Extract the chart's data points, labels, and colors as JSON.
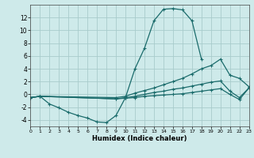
{
  "xlabel": "Humidex (Indice chaleur)",
  "background_color": "#ceeaea",
  "grid_color": "#a8cccc",
  "line_color": "#1a6b6b",
  "xlim": [
    0,
    23
  ],
  "ylim": [
    -5,
    14
  ],
  "xticks": [
    0,
    1,
    2,
    3,
    4,
    5,
    6,
    7,
    8,
    9,
    10,
    11,
    12,
    13,
    14,
    15,
    16,
    17,
    18,
    19,
    20,
    21,
    22,
    23
  ],
  "yticks": [
    -4,
    -2,
    0,
    2,
    4,
    6,
    8,
    10,
    12
  ],
  "series": [
    {
      "x": [
        0,
        1,
        2,
        3,
        4,
        5,
        6,
        7,
        8,
        9,
        10,
        11,
        12,
        13,
        14,
        15,
        16,
        17,
        18
      ],
      "y": [
        -0.5,
        -0.3,
        -1.5,
        -2.1,
        -2.8,
        -3.3,
        -3.7,
        -4.3,
        -4.4,
        -3.3,
        -0.5,
        4.0,
        7.2,
        11.5,
        13.3,
        13.4,
        13.2,
        11.5,
        5.5
      ]
    },
    {
      "x": [
        0,
        1,
        9,
        10,
        11,
        12,
        13,
        14,
        15,
        16,
        17,
        18,
        19,
        20,
        21,
        22,
        23
      ],
      "y": [
        -0.5,
        -0.3,
        -0.5,
        -0.3,
        0.2,
        0.6,
        1.0,
        1.5,
        2.0,
        2.5,
        3.2,
        4.0,
        4.5,
        5.5,
        3.0,
        2.5,
        1.2
      ]
    },
    {
      "x": [
        0,
        1,
        9,
        10,
        11,
        12,
        13,
        14,
        15,
        16,
        17,
        18,
        19,
        20,
        21,
        22,
        23
      ],
      "y": [
        -0.5,
        -0.3,
        -0.7,
        -0.5,
        -0.3,
        0.0,
        0.3,
        0.5,
        0.8,
        1.0,
        1.3,
        1.6,
        1.9,
        2.1,
        0.5,
        -0.5,
        1.0
      ]
    },
    {
      "x": [
        0,
        1,
        9,
        10,
        11,
        12,
        13,
        14,
        15,
        16,
        17,
        18,
        19,
        20,
        21,
        22,
        23
      ],
      "y": [
        -0.5,
        -0.3,
        -0.7,
        -0.6,
        -0.5,
        -0.3,
        -0.2,
        -0.1,
        0.0,
        0.1,
        0.3,
        0.5,
        0.7,
        0.9,
        0.0,
        -0.8,
        1.0
      ]
    }
  ]
}
